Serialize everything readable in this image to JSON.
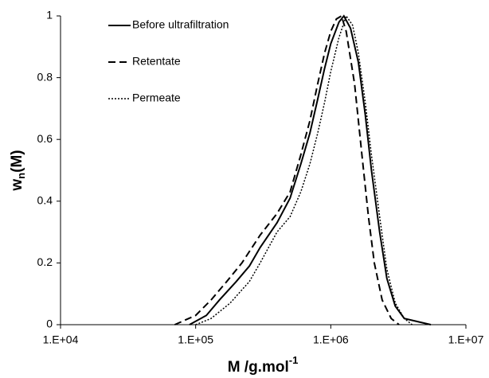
{
  "chart_data": {
    "type": "line",
    "xlabel": [
      "M /g.mol",
      "-1"
    ],
    "ylabel": [
      "w",
      "n",
      "(M)"
    ],
    "xscale": "log",
    "xlim": [
      10000,
      10000000
    ],
    "ylim": [
      0,
      1
    ],
    "xticks": [
      {
        "value": 10000,
        "label": "1.E+04"
      },
      {
        "value": 100000,
        "label": "1.E+05"
      },
      {
        "value": 1000000,
        "label": "1.E+06"
      },
      {
        "value": 10000000,
        "label": "1.E+07"
      }
    ],
    "yticks": [
      0,
      0.2,
      0.4,
      0.6,
      0.8,
      1
    ],
    "legend": "upper left",
    "series": [
      {
        "name": "Before ultrafiltration",
        "color": "#000000",
        "dash": "solid",
        "x": [
          90000,
          120000,
          150000,
          200000,
          250000,
          300000,
          400000,
          500000,
          600000,
          700000,
          800000,
          900000,
          1000000,
          1150000,
          1250000,
          1400000,
          1600000,
          1800000,
          2000000,
          2300000,
          2600000,
          3000000,
          3500000,
          5500000
        ],
        "values": [
          0,
          0.03,
          0.08,
          0.14,
          0.19,
          0.25,
          0.33,
          0.41,
          0.52,
          0.62,
          0.73,
          0.83,
          0.91,
          0.98,
          1.0,
          0.96,
          0.85,
          0.68,
          0.5,
          0.3,
          0.15,
          0.06,
          0.02,
          0
        ]
      },
      {
        "name": "Retentate",
        "color": "#000000",
        "dash": "dashed",
        "x": [
          70000,
          100000,
          130000,
          170000,
          220000,
          300000,
          400000,
          500000,
          600000,
          700000,
          800000,
          900000,
          1000000,
          1100000,
          1200000,
          1300000,
          1500000,
          1700000,
          1900000,
          2100000,
          2400000,
          2800000,
          3200000
        ],
        "values": [
          0,
          0.03,
          0.08,
          0.14,
          0.2,
          0.29,
          0.36,
          0.43,
          0.55,
          0.66,
          0.78,
          0.88,
          0.95,
          0.99,
          1.0,
          0.95,
          0.78,
          0.55,
          0.35,
          0.2,
          0.08,
          0.02,
          0
        ]
      },
      {
        "name": "Permeate",
        "color": "#000000",
        "dash": "dotted",
        "x": [
          100000,
          130000,
          180000,
          250000,
          300000,
          400000,
          500000,
          600000,
          700000,
          800000,
          900000,
          1000000,
          1150000,
          1300000,
          1450000,
          1600000,
          1800000,
          2000000,
          2300000,
          2600000,
          3000000,
          3500000,
          4000000
        ],
        "values": [
          0,
          0.02,
          0.07,
          0.14,
          0.2,
          0.3,
          0.35,
          0.43,
          0.52,
          0.62,
          0.72,
          0.82,
          0.93,
          1.0,
          0.97,
          0.88,
          0.72,
          0.55,
          0.35,
          0.18,
          0.07,
          0.02,
          0
        ]
      }
    ]
  }
}
